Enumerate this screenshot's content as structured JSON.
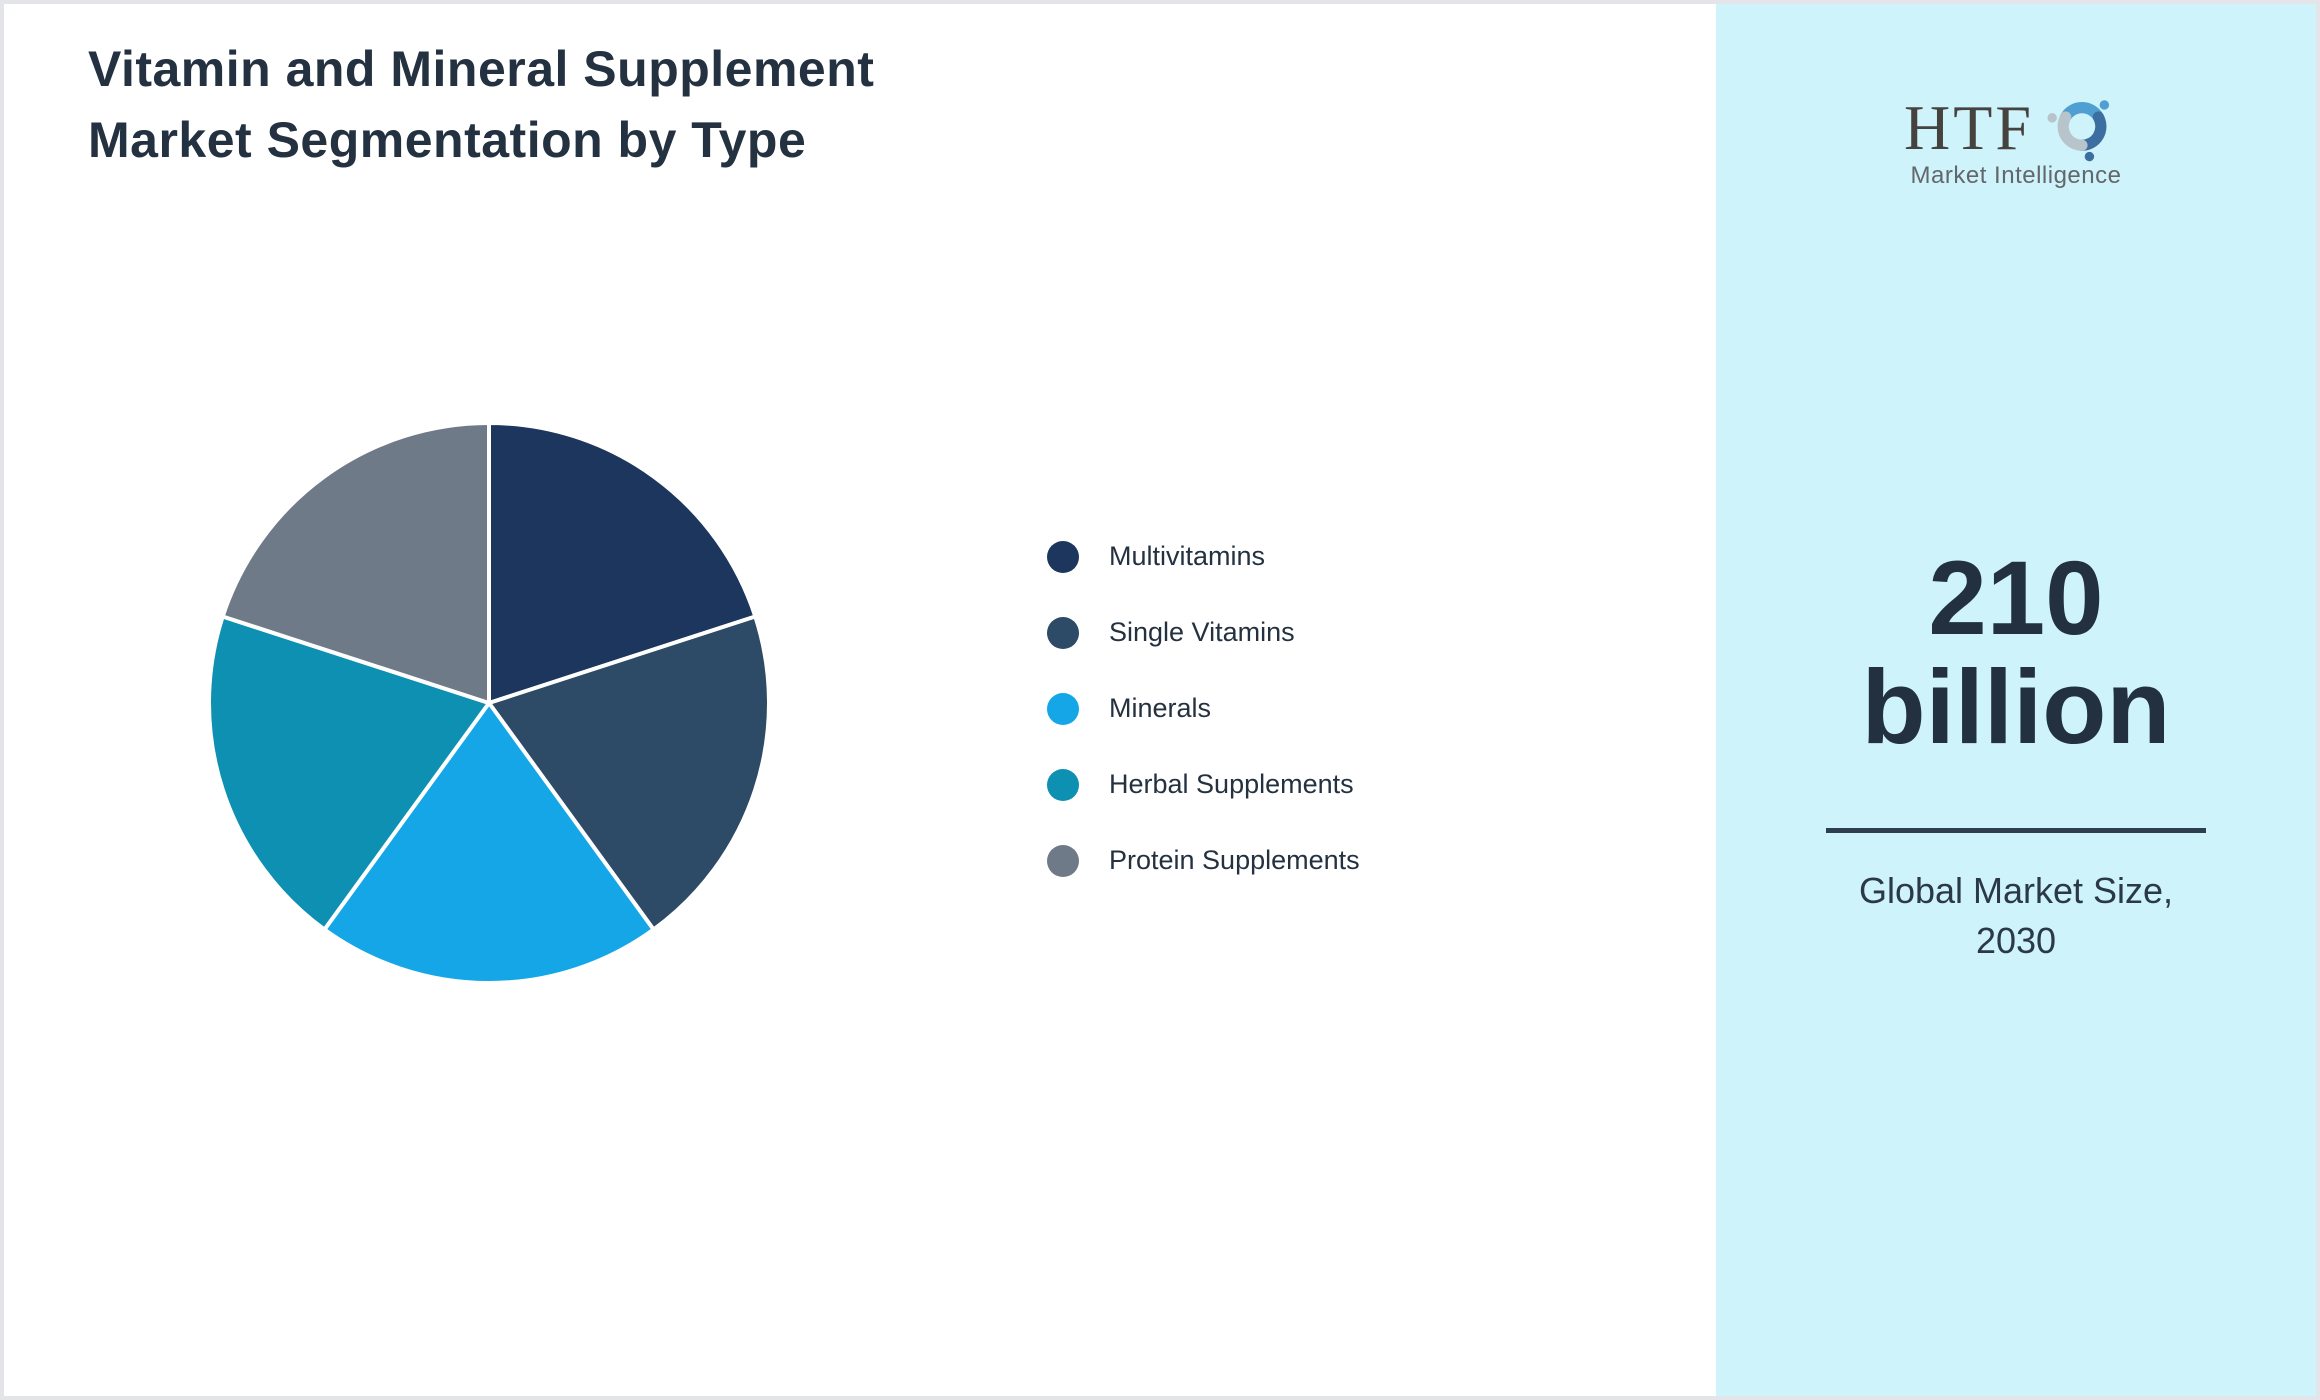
{
  "header": {
    "title": "Vitamin and Mineral Supplement Market Segmentation by Type",
    "title_lines": [
      "Vitamin and Mineral Supplement",
      "Market Segmentation by Type"
    ]
  },
  "chart_data": {
    "type": "pie",
    "title": "Vitamin and Mineral Supplement Market Segmentation by Type",
    "categories": [
      "Multivitamins",
      "Single Vitamins",
      "Minerals",
      "Herbal Supplements",
      "Protein Supplements"
    ],
    "values": [
      20,
      20,
      20,
      20,
      20
    ],
    "unit": "%",
    "colors": [
      "#1c365e",
      "#2d4a66",
      "#15a6e8",
      "#0d90b2",
      "#6f7a88"
    ],
    "start_angle_deg": 0,
    "direction": "clockwise",
    "slice_gap_color": "#ffffff",
    "legend_position": "right",
    "labels_shown_on_slices": false
  },
  "sidebar": {
    "background_color": "#cef3fa",
    "logo": {
      "text": "HTF",
      "subtitle": "Market Intelligence",
      "icon": "three-dolphins-swirl-icon",
      "icon_colors": [
        "#4f9fd2",
        "#3c6f9f",
        "#b8c4cc"
      ]
    },
    "stat": {
      "value": "210 billion",
      "caption": "Global Market Size, 2030"
    }
  },
  "colors": {
    "text_dark": "#233140",
    "page_border": "#e3e5e9",
    "divider": "#2d3e50"
  }
}
